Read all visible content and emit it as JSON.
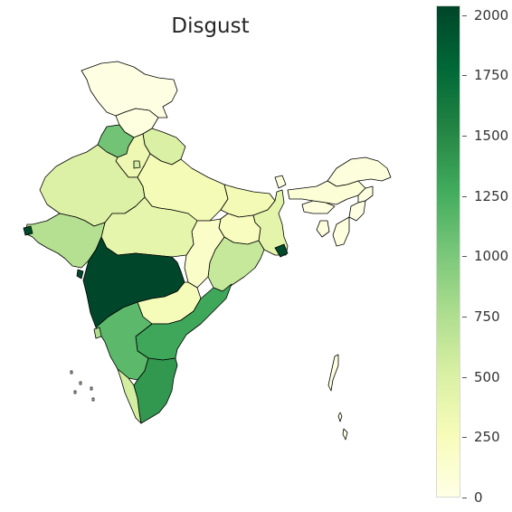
{
  "title": "Disgust",
  "colorbar": {
    "min": 0,
    "max": 2040,
    "colormap": "YlGn",
    "stops": [
      "#ffffe5",
      "#f7fcb9",
      "#d9f0a3",
      "#addd8e",
      "#78c679",
      "#41ab5d",
      "#238443",
      "#006837",
      "#004529"
    ],
    "ticks": [
      "0",
      "250",
      "500",
      "750",
      "1000",
      "1250",
      "1500",
      "1750",
      "2000"
    ]
  },
  "regions": [
    {
      "name": "Jammu and Kashmir",
      "value": 20
    },
    {
      "name": "Himachal Pradesh",
      "value": 40
    },
    {
      "name": "Punjab",
      "value": 1050
    },
    {
      "name": "Uttarakhand",
      "value": 500
    },
    {
      "name": "Haryana",
      "value": 330
    },
    {
      "name": "Delhi",
      "value": 550
    },
    {
      "name": "Rajasthan",
      "value": 480
    },
    {
      "name": "Uttar Pradesh",
      "value": 280
    },
    {
      "name": "Bihar",
      "value": 300
    },
    {
      "name": "Sikkim",
      "value": 50
    },
    {
      "name": "Arunachal Pradesh",
      "value": 60
    },
    {
      "name": "Assam",
      "value": 90
    },
    {
      "name": "Nagaland",
      "value": 30
    },
    {
      "name": "Meghalaya",
      "value": 40
    },
    {
      "name": "Manipur",
      "value": 20
    },
    {
      "name": "Mizoram",
      "value": 40
    },
    {
      "name": "Tripura",
      "value": 60
    },
    {
      "name": "West Bengal",
      "value": 420
    },
    {
      "name": "Jharkhand",
      "value": 220
    },
    {
      "name": "Odisha",
      "value": 620
    },
    {
      "name": "Chhattisgarh",
      "value": 170
    },
    {
      "name": "Madhya Pradesh",
      "value": 410
    },
    {
      "name": "Gujarat",
      "value": 720
    },
    {
      "name": "Maharashtra",
      "value": 2030
    },
    {
      "name": "Telangana",
      "value": 270
    },
    {
      "name": "Andhra Pradesh",
      "value": 1300
    },
    {
      "name": "Karnataka",
      "value": 1150
    },
    {
      "name": "Goa",
      "value": 750
    },
    {
      "name": "Kerala",
      "value": 540
    },
    {
      "name": "Tamil Nadu",
      "value": 1400
    },
    {
      "name": "Andaman and Nicobar Islands",
      "value": 10
    },
    {
      "name": "Lakshadweep",
      "value": 10
    },
    {
      "name": "Dadra and Nagar Haveli",
      "value": 2000
    },
    {
      "name": "Daman and Diu",
      "value": 2000
    }
  ]
}
